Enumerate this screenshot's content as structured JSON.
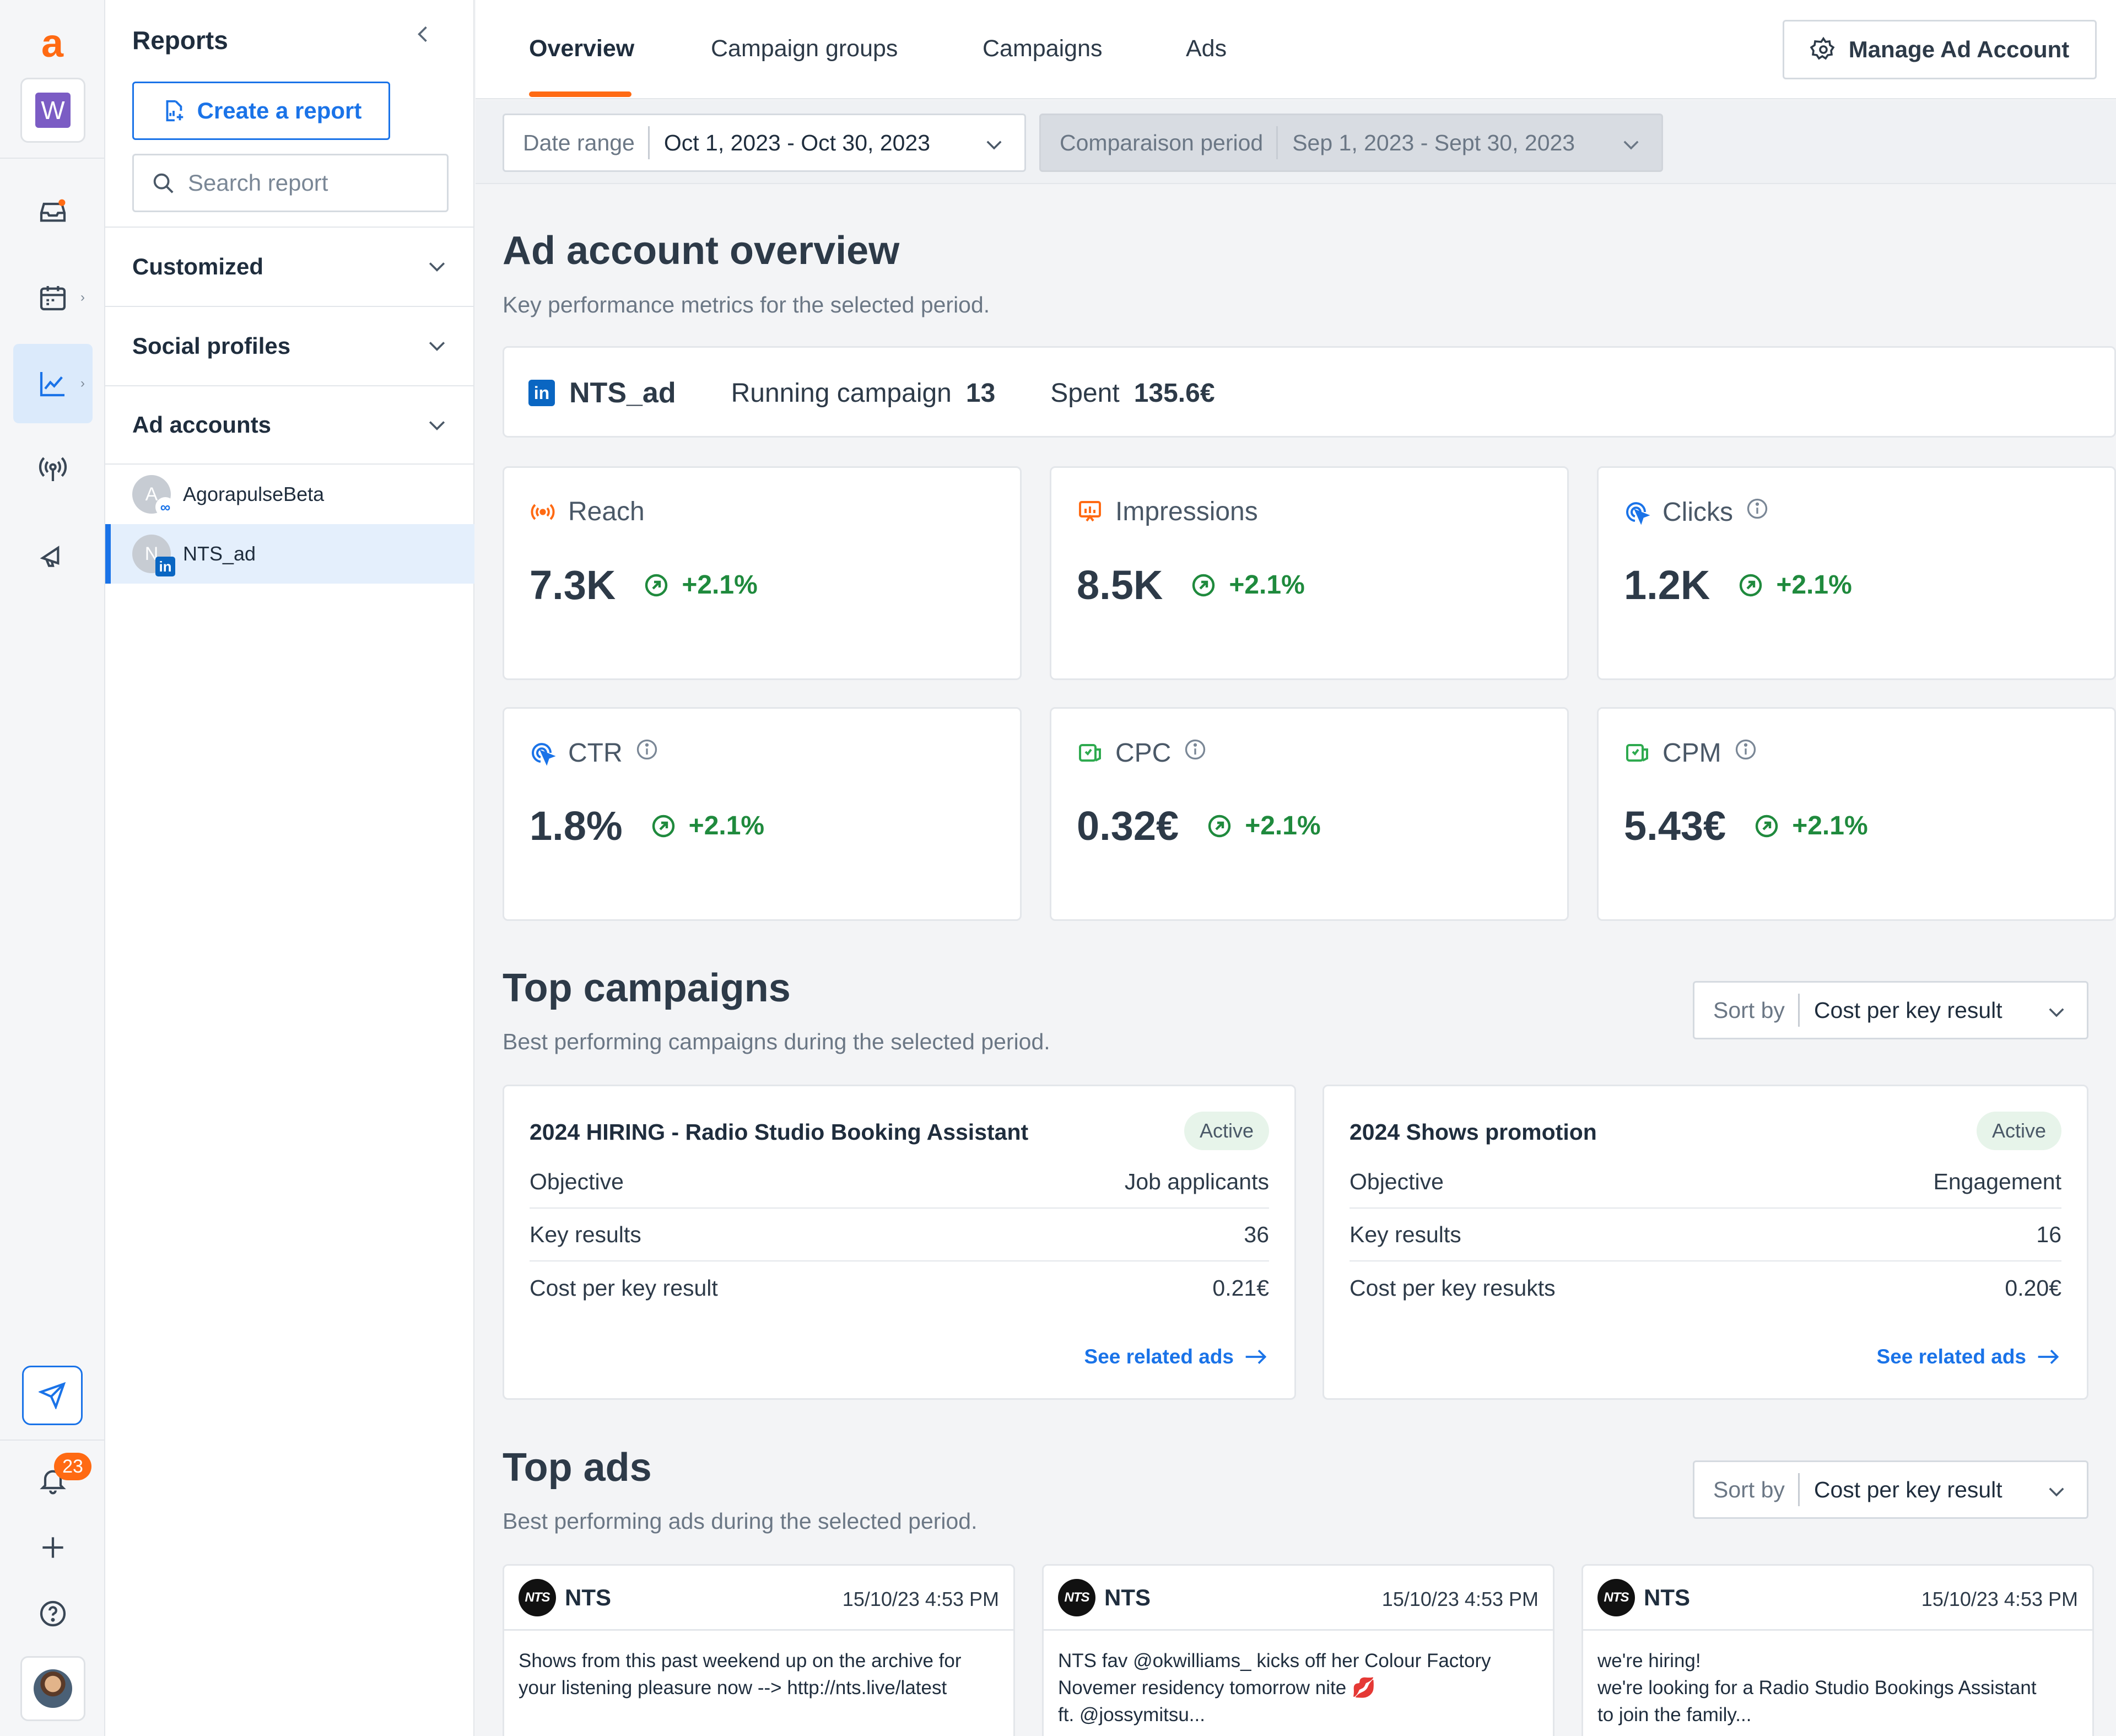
{
  "rail": {
    "logo": "a",
    "workspace_letter": "W",
    "notification_count": "23"
  },
  "sidebar": {
    "title": "Reports",
    "create_label": "Create a report",
    "search_placeholder": "Search report",
    "groups": [
      {
        "label": "Customized"
      },
      {
        "label": "Social profiles"
      },
      {
        "label": "Ad accounts"
      }
    ],
    "profiles": [
      {
        "label": "AgorapulseBeta",
        "initial": "A",
        "network": "meta"
      },
      {
        "label": "NTS_ad",
        "initial": "N",
        "network": "linkedin",
        "selected": true
      }
    ]
  },
  "tabs": [
    {
      "label": "Overview",
      "active": true
    },
    {
      "label": "Campaign groups"
    },
    {
      "label": "Campaigns"
    },
    {
      "label": "Ads"
    }
  ],
  "manage_label": "Manage Ad Account",
  "filters": {
    "date_label": "Date range",
    "date_value": "Oct 1, 2023 - Oct 30, 2023",
    "compare_label": "Comparaison period",
    "compare_value": "Sep 1, 2023 - Sept 30, 2023"
  },
  "overview": {
    "title": "Ad account overview",
    "subtitle": "Key performance metrics for the selected period.",
    "account_name": "NTS_ad",
    "running_label": "Running campaign",
    "running_value": "13",
    "spent_label": "Spent",
    "spent_value": "135.6€",
    "metrics": [
      {
        "label": "Reach",
        "value": "7.3K",
        "delta": "+2.1%",
        "icon": "reach-icon"
      },
      {
        "label": "Impressions",
        "value": "8.5K",
        "delta": "+2.1%",
        "icon": "impressions-icon"
      },
      {
        "label": "Clicks",
        "value": "1.2K",
        "delta": "+2.1%",
        "icon": "click-icon"
      },
      {
        "label": "CTR",
        "value": "1.8%",
        "delta": "+2.1%",
        "icon": "click-icon"
      },
      {
        "label": "CPC",
        "value": "0.32€",
        "delta": "+2.1%",
        "icon": "money-icon"
      },
      {
        "label": "CPM",
        "value": "5.43€",
        "delta": "+2.1%",
        "icon": "money-icon"
      }
    ]
  },
  "top_campaigns": {
    "title": "Top campaigns",
    "subtitle": "Best performing campaigns during the selected period.",
    "sort_label": "Sort by",
    "sort_value": "Cost per key result",
    "items": [
      {
        "title": "2024 HIRING - Radio Studio Booking Assistant",
        "status": "Active",
        "rows": [
          {
            "k": "Objective",
            "v": "Job applicants"
          },
          {
            "k": "Key results",
            "v": "36"
          },
          {
            "k": "Cost per key result",
            "v": "0.21€"
          }
        ],
        "link": "See related ads"
      },
      {
        "title": "2024 Shows promotion",
        "status": "Active",
        "rows": [
          {
            "k": "Objective",
            "v": "Engagement"
          },
          {
            "k": "Key results",
            "v": "16"
          },
          {
            "k": "Cost per key resukts",
            "v": "0.20€"
          }
        ],
        "link": "See related ads"
      }
    ]
  },
  "top_ads": {
    "title": "Top ads",
    "subtitle": "Best performing ads during the selected period.",
    "sort_label": "Sort by",
    "sort_value": "Cost per key result",
    "items": [
      {
        "name": "NTS",
        "time": "15/10/23 4:53 PM",
        "text": "Shows from this past weekend up on the archive for\nyour listening pleasure now --> http://nts.live/latest"
      },
      {
        "name": "NTS",
        "time": "15/10/23 4:53 PM",
        "text": "NTS fav @okwilliams_ kicks off her Colour Factory\nNovemer residency tomorrow nite 💋\nft. @jossymitsu..."
      },
      {
        "name": "NTS",
        "time": "15/10/23 4:53 PM",
        "text": "we're hiring!\nwe're looking for a Radio Studio Bookings Assistant\nto join the family..."
      }
    ]
  },
  "colors": {
    "accent": "#1a73e8",
    "brand": "#ff6a13",
    "positive": "#1f8a3d"
  }
}
